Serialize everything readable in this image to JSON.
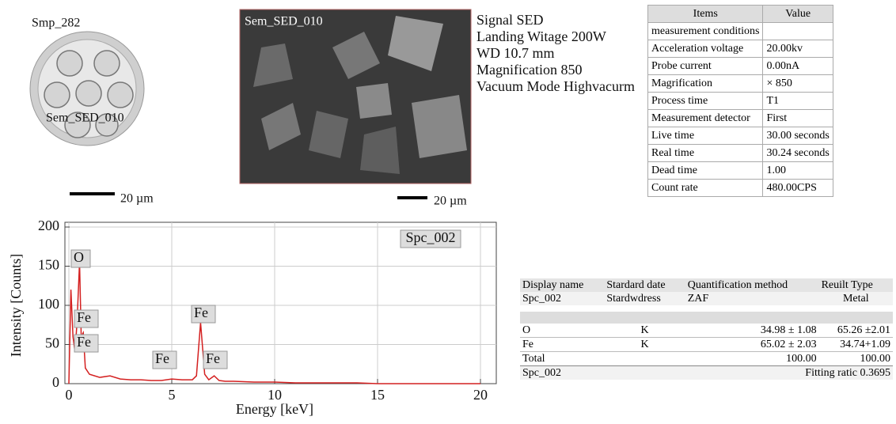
{
  "sample": {
    "label": "Smp_282",
    "position": "Sem_SED_010",
    "scale": "20 µm"
  },
  "image": {
    "label": "Sem_SED_010",
    "scale": "20 µm",
    "info": [
      "Signal SED",
      "Landing Witage 200W",
      "WD 10.7 mm",
      "Magnification 850",
      "Vacuum Mode Highvacurm"
    ]
  },
  "conditions_table": {
    "header": [
      "Items",
      "Value"
    ],
    "rows": [
      [
        "measurement conditions"
      ],
      [
        "Acceleration voltage",
        "20.00kv"
      ],
      [
        "Probe current",
        "0.00nA"
      ],
      [
        "Magrification",
        "× 850"
      ],
      [
        "Process time",
        "T1"
      ],
      [
        "Measurement detector",
        "First"
      ],
      [
        "Live time",
        "30.00 seconds"
      ],
      [
        "Real time",
        "30.24 seconds"
      ],
      [
        "Dead time",
        "1.00"
      ],
      [
        "Count rate",
        "480.00CPS"
      ]
    ]
  },
  "chart_data": {
    "type": "line",
    "spectrum_label": "Spc_002",
    "x_label": "Energy [keV]",
    "y_label": "Intensity [Counts]",
    "x": [
      0,
      0.1,
      0.2,
      0.3,
      0.4,
      0.52,
      0.6,
      0.7,
      0.8,
      1.0,
      1.5,
      2,
      2.5,
      3,
      3.5,
      4,
      4.5,
      5,
      5.5,
      6,
      6.2,
      6.4,
      6.6,
      6.8,
      7.06,
      7.3,
      7.6,
      8,
      9,
      10,
      11,
      12,
      13,
      14,
      15,
      16,
      17,
      18,
      19,
      20
    ],
    "values": [
      0,
      120,
      60,
      40,
      80,
      155,
      60,
      65,
      20,
      12,
      8,
      10,
      6,
      5,
      5,
      4,
      4,
      6,
      5,
      5,
      10,
      78,
      12,
      5,
      10,
      4,
      3,
      3,
      2,
      2,
      1,
      1,
      1,
      1,
      0,
      0,
      0,
      0,
      0,
      0
    ],
    "color": "#d42020",
    "peak_labels": [
      "O",
      "Fe",
      "Fe",
      "Fe",
      "Fe",
      "Fe"
    ],
    "xlim": [
      0,
      20
    ],
    "xticks": [
      0,
      5,
      10,
      15,
      20
    ],
    "ylim": [
      0,
      200
    ],
    "yticks": [
      0,
      50,
      100,
      150,
      200
    ],
    "grid": true
  },
  "result_table": {
    "header": [
      "Display name",
      "Stardard date",
      "Quantification method",
      "Reuilt Type"
    ],
    "info": [
      "Spc_002",
      "Stardwdress",
      "ZAF",
      "Metal"
    ],
    "rows": [
      [
        "O",
        "K",
        "34.98 ± 1.08",
        "65.26 ±2.01"
      ],
      [
        "Fe",
        "K",
        "65.02 ± 2.03",
        "34.74+1.09"
      ]
    ],
    "total": [
      "Total",
      "100.00",
      "100.00"
    ],
    "footer": [
      "Spc_002",
      "Fitting ratic 0.3695"
    ]
  }
}
